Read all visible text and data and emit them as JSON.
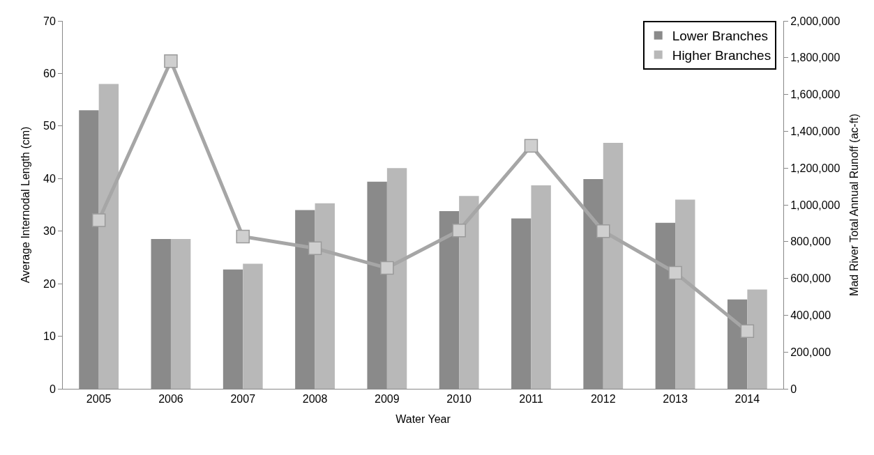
{
  "chart_data": {
    "type": "bar",
    "xlabel": "Water Year",
    "ylabel": "Average Internodal Length (cm)",
    "y2label": "Mad River Total Annual Runoff (ac-ft)",
    "categories": [
      "2005",
      "2006",
      "2007",
      "2008",
      "2009",
      "2010",
      "2011",
      "2012",
      "2013",
      "2014"
    ],
    "series": [
      {
        "name": "Lower Branches",
        "color": "#8a8a8a",
        "values": [
          53.0,
          28.5,
          22.7,
          34.0,
          39.4,
          33.8,
          32.4,
          39.9,
          31.6,
          17.0
        ]
      },
      {
        "name": "Higher Branches",
        "color": "#b8b8b8",
        "values": [
          58.0,
          28.5,
          23.8,
          35.3,
          42.0,
          36.7,
          38.7,
          46.8,
          36.0,
          18.9
        ]
      },
      {
        "type": "line",
        "axis": "y2",
        "color": "#a6a6a6",
        "marker": "square",
        "values": [
          917000,
          1781000,
          828000,
          764000,
          657000,
          861000,
          1321000,
          857000,
          631000,
          313000
        ]
      }
    ],
    "ylim": [
      0,
      70
    ],
    "yticks": [
      0,
      10,
      20,
      30,
      40,
      50,
      60,
      70
    ],
    "y2lim": [
      0,
      2000000
    ],
    "y2ticks": [
      {
        "value": 0,
        "label": "0"
      },
      {
        "value": 200000,
        "label": "200,000"
      },
      {
        "value": 400000,
        "label": "400,000"
      },
      {
        "value": 600000,
        "label": "600,000"
      },
      {
        "value": 800000,
        "label": "800,000"
      },
      {
        "value": 1000000,
        "label": "1,000,000"
      },
      {
        "value": 1200000,
        "label": "1,200,000"
      },
      {
        "value": 1400000,
        "label": "1,400,000"
      },
      {
        "value": 1600000,
        "label": "1,600,000"
      },
      {
        "value": 1800000,
        "label": "1,800,000"
      },
      {
        "value": 2000000,
        "label": "2,000,000"
      }
    ],
    "grid": false,
    "legend": "top right"
  }
}
